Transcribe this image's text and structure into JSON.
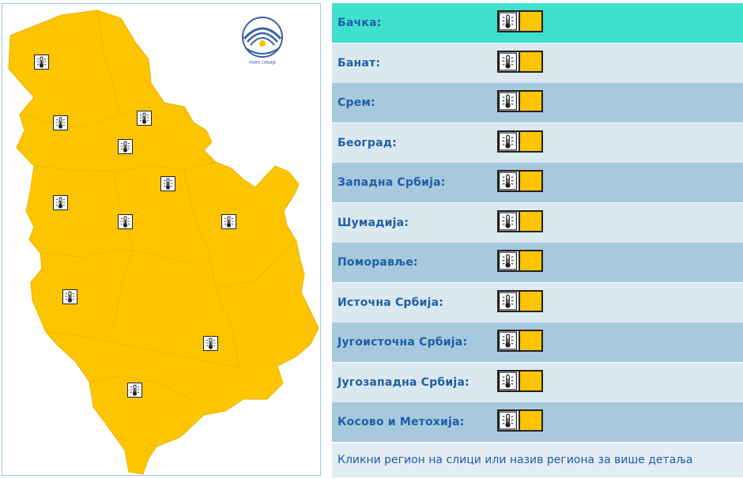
{
  "colors": {
    "warning_yellow": "#fdc400",
    "row_highlight": "#40e0d0",
    "row_dark": "#a7c9dd",
    "row_light": "#dbe8f0",
    "label_blue": "#1f5fa6"
  },
  "map": {
    "icon_name": "thermometer-heat-icon",
    "logo_text": "РХМЗ СРБИЈЕ"
  },
  "regions": [
    {
      "name": "Бачка:",
      "icon": "thermometer-heat-icon",
      "level": "yellow"
    },
    {
      "name": "Банат:",
      "icon": "thermometer-heat-icon",
      "level": "yellow"
    },
    {
      "name": "Срем:",
      "icon": "thermometer-heat-icon",
      "level": "yellow"
    },
    {
      "name": "Београд:",
      "icon": "thermometer-heat-icon",
      "level": "yellow"
    },
    {
      "name": "Западна Србија:",
      "icon": "thermometer-heat-icon",
      "level": "yellow"
    },
    {
      "name": "Шумадија:",
      "icon": "thermometer-heat-icon",
      "level": "yellow"
    },
    {
      "name": "Поморавље:",
      "icon": "thermometer-heat-icon",
      "level": "yellow"
    },
    {
      "name": "Источна Србија:",
      "icon": "thermometer-heat-icon",
      "level": "yellow"
    },
    {
      "name": "Југоисточна Србија:",
      "icon": "thermometer-heat-icon",
      "level": "yellow"
    },
    {
      "name": "Југозападна Србија:",
      "icon": "thermometer-heat-icon",
      "level": "yellow"
    },
    {
      "name": "Косово и Метохија:",
      "icon": "thermometer-heat-icon",
      "level": "yellow"
    }
  ],
  "footer": {
    "text": "Кликни регион на слици или назив региона за више детаља"
  }
}
